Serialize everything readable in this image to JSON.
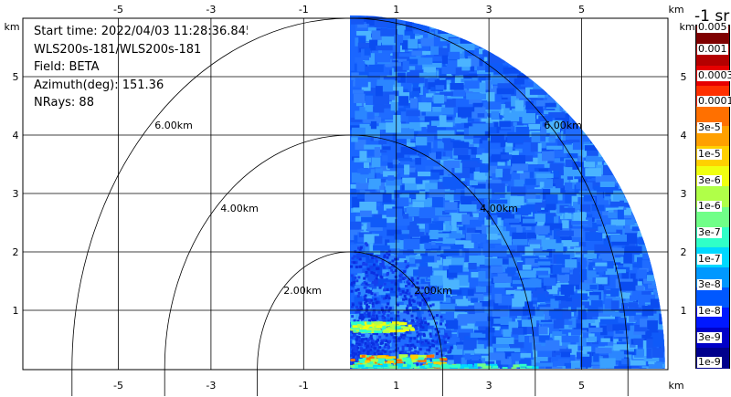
{
  "info": {
    "start_time": "Start time: 2022/04/03 11:28:36.845",
    "instrument": "WLS200s-181/WLS200s-181",
    "field": "Field: BETA",
    "azimuth": "Azimuth(deg): 151.36",
    "nrays": "NRays: 88"
  },
  "axes": {
    "x_ticks": [
      "-5",
      "-3",
      "-1",
      "1",
      "3",
      "5"
    ],
    "y_ticks": [
      "1",
      "2",
      "3",
      "4",
      "5"
    ],
    "unit": "km"
  },
  "range_rings": [
    "2.00km",
    "4.00km",
    "6.00km"
  ],
  "colorbar": {
    "title": "-1 sr",
    "labels": [
      "0.005",
      "0.001",
      "0.0003",
      "0.0001",
      "3e-5",
      "1e-5",
      "3e-6",
      "1e-6",
      "3e-7",
      "1e-7",
      "3e-8",
      "1e-8",
      "3e-9",
      "1e-9"
    ],
    "colors": [
      "#7f0000",
      "#b40000",
      "#e60000",
      "#ff3000",
      "#ff7000",
      "#ffa000",
      "#ffd000",
      "#f0ff10",
      "#b0ff48",
      "#70ff88",
      "#30ffc8",
      "#00d8ff",
      "#0098ff",
      "#0058ff",
      "#0018ff",
      "#0000c8",
      "#00008c"
    ]
  }
}
